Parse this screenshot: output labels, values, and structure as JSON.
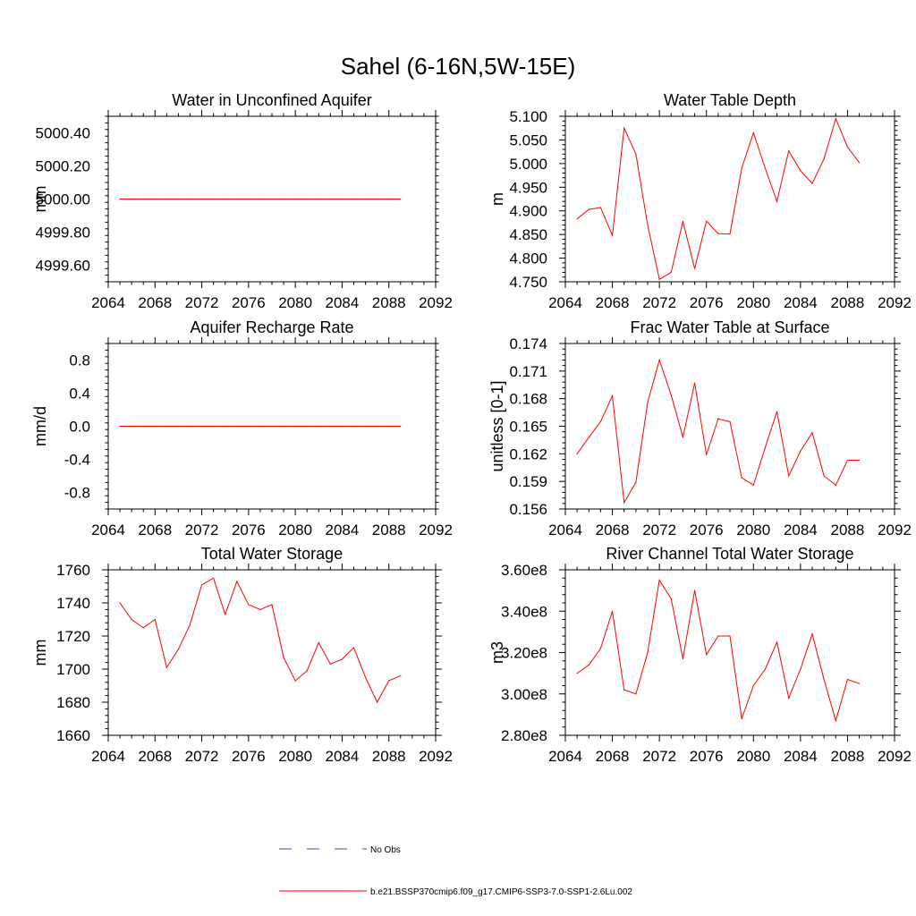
{
  "figure": {
    "title": "Sahel (6-16N,5W-15E)",
    "legend": [
      {
        "label": "No Obs",
        "style": "dashed",
        "color": "#4a4aa8"
      },
      {
        "label": "b.e21.BSSP370cmip6.f09_g17.CMIP6-SSP3-7.0-SSP1-2.6Lu.002",
        "style": "solid",
        "color": "#ff0000"
      }
    ]
  },
  "chart_data": [
    {
      "type": "line",
      "title": "Water in Unconfined Aquifer",
      "ylabel": "mm",
      "xlim": [
        2064,
        2092
      ],
      "ylim": [
        4999.5,
        5000.5
      ],
      "xticks": [
        2064,
        2068,
        2072,
        2076,
        2080,
        2084,
        2088,
        2092
      ],
      "yticks": [
        "4999.60",
        "4999.80",
        "5000.00",
        "5000.20",
        "5000.40"
      ],
      "x": [
        2065,
        2066,
        2067,
        2068,
        2069,
        2070,
        2071,
        2072,
        2073,
        2074,
        2075,
        2076,
        2077,
        2078,
        2079,
        2080,
        2081,
        2082,
        2083,
        2084,
        2085,
        2086,
        2087,
        2088,
        2089
      ],
      "series": [
        {
          "color": "#ff0000",
          "values": [
            5000.0,
            5000.0,
            5000.0,
            5000.0,
            5000.0,
            5000.0,
            5000.0,
            5000.0,
            5000.0,
            5000.0,
            5000.0,
            5000.0,
            5000.0,
            5000.0,
            5000.0,
            5000.0,
            5000.0,
            5000.0,
            5000.0,
            5000.0,
            5000.0,
            5000.0,
            5000.0,
            5000.0,
            5000.0
          ]
        }
      ]
    },
    {
      "type": "line",
      "title": "Water Table Depth",
      "ylabel": "m",
      "xlim": [
        2064,
        2092
      ],
      "ylim": [
        4.75,
        5.1
      ],
      "xticks": [
        2064,
        2068,
        2072,
        2076,
        2080,
        2084,
        2088,
        2092
      ],
      "yticks": [
        "4.750",
        "4.800",
        "4.850",
        "4.900",
        "4.950",
        "5.000",
        "5.050",
        "5.100"
      ],
      "x": [
        2065,
        2066,
        2067,
        2068,
        2069,
        2070,
        2071,
        2072,
        2073,
        2074,
        2075,
        2076,
        2077,
        2078,
        2079,
        2080,
        2081,
        2082,
        2083,
        2084,
        2085,
        2086,
        2087,
        2088,
        2089
      ],
      "series": [
        {
          "color": "#ff0000",
          "values": [
            4.883,
            4.903,
            4.907,
            4.848,
            5.075,
            5.02,
            4.87,
            4.755,
            4.77,
            4.878,
            4.778,
            4.878,
            4.852,
            4.851,
            4.99,
            5.065,
            4.99,
            4.92,
            5.027,
            4.985,
            4.958,
            5.01,
            5.095,
            5.035,
            5.002
          ]
        }
      ]
    },
    {
      "type": "line",
      "title": "Aquifer Recharge Rate",
      "ylabel": "mm/d",
      "xlim": [
        2064,
        2092
      ],
      "ylim": [
        -1.0,
        1.0
      ],
      "xticks": [
        2064,
        2068,
        2072,
        2076,
        2080,
        2084,
        2088,
        2092
      ],
      "yticks": [
        "-0.8",
        "-0.4",
        "0.0",
        "0.4",
        "0.8"
      ],
      "x": [
        2065,
        2066,
        2067,
        2068,
        2069,
        2070,
        2071,
        2072,
        2073,
        2074,
        2075,
        2076,
        2077,
        2078,
        2079,
        2080,
        2081,
        2082,
        2083,
        2084,
        2085,
        2086,
        2087,
        2088,
        2089
      ],
      "series": [
        {
          "color": "#ff0000",
          "values": [
            0.0,
            0.0,
            0.0,
            0.0,
            0.0,
            0.0,
            0.0,
            0.0,
            0.0,
            0.0,
            0.0,
            0.0,
            0.0,
            0.0,
            0.0,
            0.0,
            0.0,
            0.0,
            0.0,
            0.0,
            0.0,
            0.0,
            0.0,
            0.0,
            0.0
          ]
        }
      ]
    },
    {
      "type": "line",
      "title": "Frac Water Table at Surface",
      "ylabel": "unitless [0-1]",
      "xlim": [
        2064,
        2092
      ],
      "ylim": [
        0.156,
        0.174
      ],
      "xticks": [
        2064,
        2068,
        2072,
        2076,
        2080,
        2084,
        2088,
        2092
      ],
      "yticks": [
        "0.156",
        "0.159",
        "0.162",
        "0.165",
        "0.168",
        "0.171",
        "0.174"
      ],
      "x": [
        2065,
        2066,
        2067,
        2068,
        2069,
        2070,
        2071,
        2072,
        2073,
        2074,
        2075,
        2076,
        2077,
        2078,
        2079,
        2080,
        2081,
        2082,
        2083,
        2084,
        2085,
        2086,
        2087,
        2088,
        2089
      ],
      "series": [
        {
          "color": "#ff0000",
          "values": [
            0.162,
            0.1638,
            0.1655,
            0.1683,
            0.1567,
            0.1589,
            0.1676,
            0.1722,
            0.1684,
            0.1638,
            0.1697,
            0.1619,
            0.1658,
            0.1655,
            0.1594,
            0.1586,
            0.1627,
            0.1666,
            0.1596,
            0.1623,
            0.1643,
            0.1596,
            0.1586,
            0.1613,
            0.1613
          ]
        }
      ]
    },
    {
      "type": "line",
      "title": "Total Water Storage",
      "ylabel": "mm",
      "xlim": [
        2064,
        2092
      ],
      "ylim": [
        1660,
        1760
      ],
      "xticks": [
        2064,
        2068,
        2072,
        2076,
        2080,
        2084,
        2088,
        2092
      ],
      "yticks": [
        "1660",
        "1680",
        "1700",
        "1720",
        "1740",
        "1760"
      ],
      "x": [
        2065,
        2066,
        2067,
        2068,
        2069,
        2070,
        2071,
        2072,
        2073,
        2074,
        2075,
        2076,
        2077,
        2078,
        2079,
        2080,
        2081,
        2082,
        2083,
        2084,
        2085,
        2086,
        2087,
        2088,
        2089
      ],
      "series": [
        {
          "color": "#ff0000",
          "values": [
            1740,
            1730,
            1725,
            1730,
            1701,
            1712,
            1727,
            1751,
            1755,
            1733,
            1753,
            1739,
            1736,
            1739,
            1707,
            1693,
            1699,
            1716,
            1703,
            1706,
            1713,
            1695,
            1680,
            1693,
            1696
          ]
        }
      ]
    },
    {
      "type": "line",
      "title": "River Channel Total Water Storage",
      "ylabel": "m3",
      "xlim": [
        2064,
        2092
      ],
      "ylim": [
        280000000,
        360000000
      ],
      "xticks": [
        2064,
        2068,
        2072,
        2076,
        2080,
        2084,
        2088,
        2092
      ],
      "yticks": [
        "2.80e8",
        "3.00e8",
        "3.20e8",
        "3.40e8",
        "3.60e8"
      ],
      "x": [
        2065,
        2066,
        2067,
        2068,
        2069,
        2070,
        2071,
        2072,
        2073,
        2074,
        2075,
        2076,
        2077,
        2078,
        2079,
        2080,
        2081,
        2082,
        2083,
        2084,
        2085,
        2086,
        2087,
        2088,
        2089
      ],
      "series": [
        {
          "color": "#ff0000",
          "values": [
            310000000,
            314000000,
            322000000,
            340000000,
            302000000,
            300000000,
            320000000,
            355000000,
            346000000,
            317000000,
            350000000,
            319000000,
            328000000,
            328000000,
            288000000,
            304000000,
            312000000,
            325000000,
            298000000,
            312000000,
            329000000,
            307000000,
            287000000,
            307000000,
            305000000
          ]
        }
      ]
    }
  ]
}
